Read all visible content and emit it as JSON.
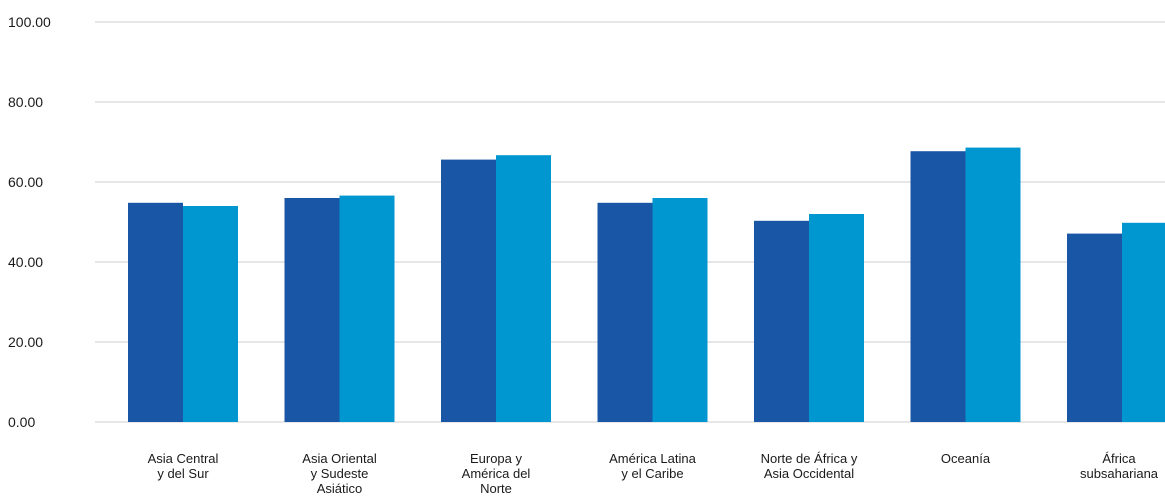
{
  "chart_data": {
    "type": "bar",
    "title": "",
    "xlabel": "",
    "ylabel": "",
    "ylim": [
      0,
      100
    ],
    "yticks": [
      "100.00",
      "80.00",
      "60.00",
      "40.00",
      "20.00",
      "0.00"
    ],
    "grid": true,
    "categories": [
      [
        "Asia Central",
        "y del Sur"
      ],
      [
        "Asia Oriental",
        "y Sudeste",
        "Asiático"
      ],
      [
        "Europa y",
        "América del",
        "Norte"
      ],
      [
        "América Latina",
        "y el Caribe"
      ],
      [
        "Norte de África y",
        "Asia Occidental"
      ],
      [
        "Oceanía"
      ],
      [
        "África",
        "subsahariana"
      ]
    ],
    "series": [
      {
        "color": "#1a56a6",
        "values": [
          54.8,
          56.0,
          65.6,
          54.8,
          50.3,
          67.7,
          47.1
        ]
      },
      {
        "color": "#0096cf",
        "values": [
          54.0,
          56.6,
          66.7,
          56.0,
          52.0,
          68.6,
          49.8
        ]
      }
    ]
  }
}
